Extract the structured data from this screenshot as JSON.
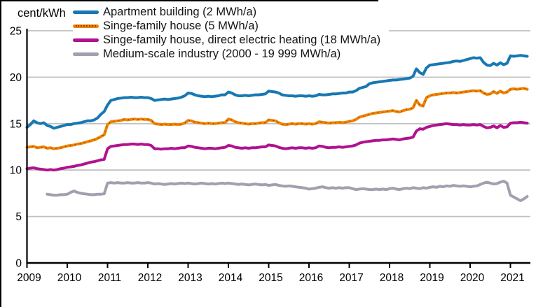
{
  "chart_data": {
    "type": "line",
    "title": "",
    "ylabel": "cent/kWh",
    "xlabel": "",
    "ylim": [
      0,
      25
    ],
    "y_ticks": [
      0,
      5,
      10,
      15,
      20,
      25
    ],
    "x_ticks": [
      "2009",
      "2010",
      "2011",
      "2012",
      "2013",
      "2014",
      "2015",
      "2016",
      "2017",
      "2018",
      "2019",
      "2020",
      "2021"
    ],
    "frequency": "monthly",
    "x_start": "2009-01",
    "x_end": "2021-06",
    "grid": "horizontal",
    "legend_position": "top-left",
    "gridline_color": "#c1c1c1",
    "axis_color": "#000000",
    "series": [
      {
        "name": "Apartment building (2 MWh/a)",
        "color": "#1778b3",
        "start_month_index": 0,
        "values": [
          14.6,
          14.9,
          15.3,
          15.1,
          15.0,
          15.1,
          14.8,
          14.7,
          14.5,
          14.6,
          14.7,
          14.8,
          14.9,
          14.9,
          15.0,
          15.05,
          15.1,
          15.2,
          15.3,
          15.3,
          15.4,
          15.6,
          16.0,
          16.3,
          17.0,
          17.5,
          17.6,
          17.7,
          17.75,
          17.8,
          17.8,
          17.85,
          17.8,
          17.8,
          17.85,
          17.8,
          17.8,
          17.7,
          17.5,
          17.55,
          17.6,
          17.65,
          17.6,
          17.65,
          17.7,
          17.75,
          17.85,
          18.0,
          18.3,
          18.25,
          18.1,
          18.0,
          17.95,
          17.9,
          17.95,
          17.9,
          17.95,
          18.0,
          18.1,
          18.1,
          18.4,
          18.3,
          18.1,
          18.0,
          18.0,
          18.05,
          18.0,
          18.05,
          18.1,
          18.1,
          18.15,
          18.2,
          18.5,
          18.45,
          18.4,
          18.3,
          18.1,
          18.05,
          18.0,
          18.0,
          17.95,
          18.0,
          18.0,
          17.95,
          18.0,
          17.95,
          18.0,
          18.15,
          18.1,
          18.1,
          18.15,
          18.2,
          18.2,
          18.25,
          18.3,
          18.3,
          18.4,
          18.4,
          18.55,
          18.8,
          18.9,
          19.0,
          19.3,
          19.4,
          19.45,
          19.5,
          19.55,
          19.6,
          19.65,
          19.7,
          19.7,
          19.75,
          19.8,
          19.85,
          19.9,
          20.1,
          20.9,
          20.5,
          20.3,
          21.0,
          21.3,
          21.35,
          21.4,
          21.45,
          21.5,
          21.55,
          21.6,
          21.7,
          21.75,
          21.7,
          21.8,
          21.9,
          22.0,
          22.1,
          22.05,
          22.1,
          21.6,
          21.3,
          21.25,
          21.5,
          21.3,
          21.55,
          21.35,
          21.5,
          22.3,
          22.25,
          22.3,
          22.35,
          22.3,
          22.25
        ]
      },
      {
        "name": "Singe-family house (5 MWh/a)",
        "color": "#ef8200",
        "line_style": "solid-with-dark-dots",
        "dot_overlay_color": "#8a4500",
        "start_month_index": 0,
        "values": [
          12.45,
          12.5,
          12.55,
          12.4,
          12.45,
          12.5,
          12.35,
          12.4,
          12.3,
          12.35,
          12.4,
          12.5,
          12.6,
          12.65,
          12.7,
          12.8,
          12.85,
          12.95,
          13.05,
          13.15,
          13.25,
          13.4,
          13.6,
          13.8,
          14.9,
          15.2,
          15.25,
          15.3,
          15.35,
          15.45,
          15.4,
          15.45,
          15.5,
          15.45,
          15.5,
          15.45,
          15.45,
          15.35,
          15.0,
          14.95,
          14.9,
          14.95,
          14.9,
          14.9,
          14.95,
          14.9,
          14.95,
          15.05,
          15.35,
          15.3,
          15.15,
          15.1,
          15.05,
          15.0,
          15.05,
          15.0,
          15.0,
          15.05,
          15.1,
          15.1,
          15.5,
          15.4,
          15.2,
          15.1,
          15.05,
          15.0,
          14.95,
          15.0,
          15.0,
          15.05,
          15.1,
          15.1,
          15.4,
          15.35,
          15.3,
          15.1,
          14.95,
          14.9,
          14.95,
          15.0,
          14.95,
          15.0,
          15.0,
          14.95,
          15.0,
          14.95,
          15.0,
          15.2,
          15.15,
          15.1,
          15.05,
          15.1,
          15.1,
          15.15,
          15.1,
          15.15,
          15.25,
          15.3,
          15.45,
          15.7,
          15.8,
          15.9,
          16.0,
          16.1,
          16.15,
          16.2,
          16.25,
          16.3,
          16.35,
          16.4,
          16.3,
          16.25,
          16.4,
          16.5,
          16.55,
          16.7,
          17.5,
          17.0,
          16.9,
          17.8,
          18.0,
          18.1,
          18.15,
          18.2,
          18.25,
          18.3,
          18.3,
          18.35,
          18.3,
          18.35,
          18.4,
          18.45,
          18.5,
          18.55,
          18.5,
          18.55,
          18.3,
          18.15,
          18.2,
          18.45,
          18.25,
          18.5,
          18.3,
          18.4,
          18.7,
          18.75,
          18.7,
          18.75,
          18.8,
          18.7
        ]
      },
      {
        "name": "Singe-family house, direct electric heating (18 MWh/a)",
        "color": "#b01290",
        "start_month_index": 0,
        "values": [
          10.15,
          10.2,
          10.25,
          10.15,
          10.1,
          10.05,
          10.0,
          10.05,
          10.0,
          10.05,
          10.15,
          10.2,
          10.3,
          10.35,
          10.4,
          10.5,
          10.55,
          10.65,
          10.75,
          10.85,
          10.9,
          11.0,
          11.1,
          11.15,
          12.3,
          12.55,
          12.6,
          12.65,
          12.7,
          12.75,
          12.75,
          12.8,
          12.8,
          12.75,
          12.8,
          12.75,
          12.75,
          12.65,
          12.3,
          12.3,
          12.25,
          12.3,
          12.3,
          12.35,
          12.3,
          12.35,
          12.4,
          12.4,
          12.6,
          12.55,
          12.45,
          12.4,
          12.35,
          12.3,
          12.35,
          12.35,
          12.3,
          12.35,
          12.4,
          12.45,
          12.65,
          12.6,
          12.45,
          12.4,
          12.35,
          12.4,
          12.35,
          12.4,
          12.4,
          12.45,
          12.5,
          12.5,
          12.7,
          12.65,
          12.6,
          12.45,
          12.35,
          12.3,
          12.35,
          12.4,
          12.35,
          12.4,
          12.4,
          12.35,
          12.4,
          12.35,
          12.4,
          12.6,
          12.55,
          12.45,
          12.4,
          12.45,
          12.45,
          12.5,
          12.45,
          12.5,
          12.55,
          12.6,
          12.7,
          12.9,
          13.0,
          13.05,
          13.1,
          13.15,
          13.2,
          13.2,
          13.25,
          13.25,
          13.3,
          13.35,
          13.3,
          13.25,
          13.35,
          13.4,
          13.45,
          13.55,
          14.2,
          14.45,
          14.4,
          14.6,
          14.7,
          14.8,
          14.85,
          14.9,
          14.95,
          15.0,
          14.95,
          14.9,
          14.9,
          14.85,
          14.9,
          14.85,
          14.85,
          14.9,
          14.85,
          14.9,
          14.7,
          14.55,
          14.6,
          14.75,
          14.55,
          14.8,
          14.6,
          14.65,
          15.05,
          15.1,
          15.1,
          15.15,
          15.1,
          15.05
        ]
      },
      {
        "name": "Medium-scale industry (2000 - 19 999 MWh/a)",
        "color": "#a1a0af",
        "start_month_index": 6,
        "values": [
          7.4,
          7.35,
          7.3,
          7.3,
          7.35,
          7.35,
          7.4,
          7.6,
          7.75,
          7.6,
          7.5,
          7.45,
          7.4,
          7.35,
          7.35,
          7.4,
          7.4,
          7.45,
          8.6,
          8.65,
          8.6,
          8.65,
          8.6,
          8.6,
          8.65,
          8.6,
          8.6,
          8.65,
          8.6,
          8.6,
          8.65,
          8.6,
          8.5,
          8.55,
          8.5,
          8.45,
          8.5,
          8.55,
          8.5,
          8.55,
          8.6,
          8.55,
          8.6,
          8.55,
          8.5,
          8.55,
          8.6,
          8.55,
          8.5,
          8.55,
          8.5,
          8.55,
          8.6,
          8.55,
          8.6,
          8.55,
          8.5,
          8.45,
          8.5,
          8.45,
          8.4,
          8.45,
          8.5,
          8.45,
          8.4,
          8.45,
          8.35,
          8.4,
          8.45,
          8.35,
          8.3,
          8.25,
          8.3,
          8.25,
          8.2,
          8.15,
          8.1,
          8.05,
          7.95,
          8.0,
          8.05,
          8.15,
          8.2,
          8.1,
          8.05,
          8.1,
          8.05,
          8.1,
          8.05,
          8.1,
          8.1,
          8.0,
          7.9,
          7.95,
          8.0,
          7.95,
          7.9,
          7.9,
          7.95,
          7.9,
          7.95,
          7.9,
          8.0,
          8.05,
          7.95,
          7.9,
          8.0,
          8.05,
          8.0,
          8.1,
          8.05,
          8.0,
          8.1,
          8.05,
          8.15,
          8.2,
          8.15,
          8.25,
          8.2,
          8.3,
          8.25,
          8.35,
          8.3,
          8.25,
          8.3,
          8.25,
          8.2,
          8.25,
          8.3,
          8.45,
          8.6,
          8.7,
          8.6,
          8.5,
          8.55,
          8.7,
          8.8,
          8.6,
          7.3,
          7.1,
          6.9,
          6.7,
          6.9,
          7.15
        ]
      }
    ]
  }
}
